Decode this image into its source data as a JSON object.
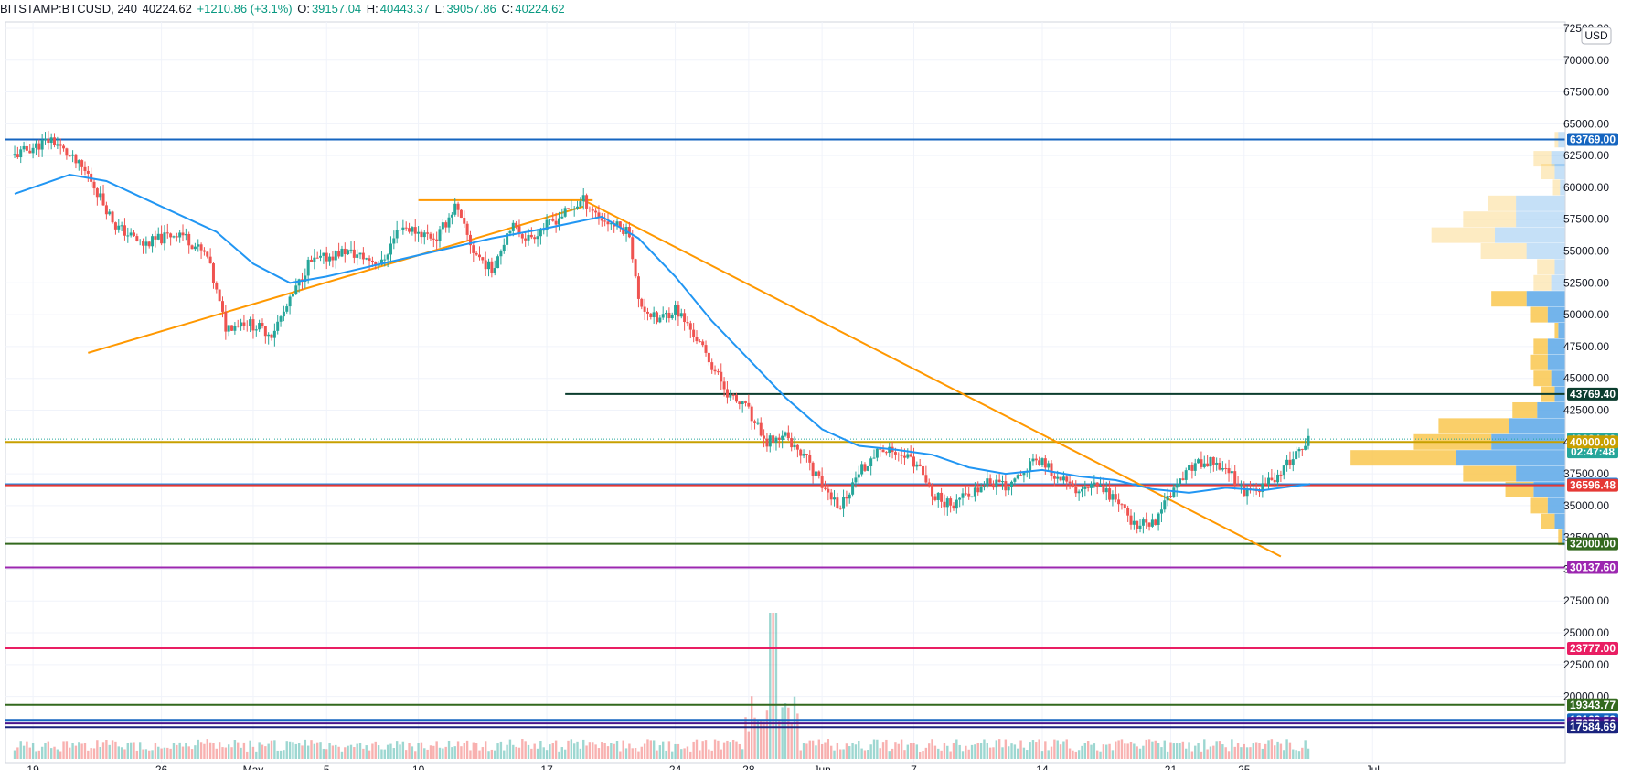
{
  "header": {
    "symbol": "BITSTAMP:BTCUSD, 240",
    "last": "40224.62",
    "change": "+1210.86 (+3.1%)",
    "o_label": "O:",
    "o": "39157.04",
    "h_label": "H:",
    "h": "40443.37",
    "l_label": "L:",
    "l": "39057.86",
    "c_label": "C:",
    "c": "40224.62"
  },
  "currency_badge": "USD",
  "colors": {
    "up": "#26a69a",
    "down": "#ef5350",
    "ma": "#2196f3",
    "trend": "#ff9800",
    "vp_buy": "#f9c74f",
    "vp_sell": "#5aa7e8"
  },
  "chart_data": {
    "type": "candlestick",
    "timeframe": "240",
    "x_ticks": [
      "19",
      "26",
      "May",
      "5",
      "10",
      "17",
      "24",
      "28",
      "Jun",
      "7",
      "14",
      "21",
      "25",
      "Jul"
    ],
    "y_ticks": [
      "72500.00",
      "70000.00",
      "67500.00",
      "65000.00",
      "62500.00",
      "60000.00",
      "57500.00",
      "55000.00",
      "52500.00",
      "50000.00",
      "47500.00",
      "45000.00",
      "42500.00",
      "40000.00",
      "37500.00",
      "35000.00",
      "32500.00",
      "30000.00",
      "27500.00",
      "25000.00",
      "22500.00",
      "20000.00"
    ],
    "ylim": [
      14800,
      73000
    ],
    "price_path": [
      {
        "d": 0,
        "p": 62500
      },
      {
        "d": 2,
        "p": 63800
      },
      {
        "d": 4,
        "p": 61000
      },
      {
        "d": 5.5,
        "p": 57000
      },
      {
        "d": 7,
        "p": 55500
      },
      {
        "d": 9,
        "p": 56500
      },
      {
        "d": 10.5,
        "p": 54500
      },
      {
        "d": 11.5,
        "p": 49000
      },
      {
        "d": 12.5,
        "p": 49500
      },
      {
        "d": 14,
        "p": 48500
      },
      {
        "d": 15,
        "p": 51000
      },
      {
        "d": 16,
        "p": 54000
      },
      {
        "d": 18,
        "p": 55000
      },
      {
        "d": 20,
        "p": 54000
      },
      {
        "d": 21,
        "p": 57000
      },
      {
        "d": 23,
        "p": 56000
      },
      {
        "d": 24,
        "p": 58500
      },
      {
        "d": 25,
        "p": 55000
      },
      {
        "d": 26,
        "p": 53500
      },
      {
        "d": 27,
        "p": 57000
      },
      {
        "d": 28,
        "p": 56000
      },
      {
        "d": 30,
        "p": 58000
      },
      {
        "d": 31,
        "p": 59000
      },
      {
        "d": 32,
        "p": 57500
      },
      {
        "d": 33.5,
        "p": 56500
      },
      {
        "d": 34,
        "p": 51000
      },
      {
        "d": 35,
        "p": 49500
      },
      {
        "d": 36,
        "p": 50500
      },
      {
        "d": 37,
        "p": 48500
      },
      {
        "d": 38,
        "p": 46000
      },
      {
        "d": 39,
        "p": 43500
      },
      {
        "d": 40,
        "p": 42500
      },
      {
        "d": 41,
        "p": 40000
      },
      {
        "d": 42,
        "p": 40500
      },
      {
        "d": 43,
        "p": 39000
      },
      {
        "d": 44,
        "p": 36500
      },
      {
        "d": 45,
        "p": 35000
      },
      {
        "d": 46,
        "p": 37500
      },
      {
        "d": 47,
        "p": 39500
      },
      {
        "d": 48,
        "p": 39000
      },
      {
        "d": 49,
        "p": 38500
      },
      {
        "d": 50,
        "p": 36000
      },
      {
        "d": 51,
        "p": 35000
      },
      {
        "d": 52,
        "p": 36000
      },
      {
        "d": 53,
        "p": 37000
      },
      {
        "d": 54,
        "p": 36500
      },
      {
        "d": 55,
        "p": 38000
      },
      {
        "d": 56,
        "p": 38500
      },
      {
        "d": 57,
        "p": 37000
      },
      {
        "d": 58,
        "p": 36000
      },
      {
        "d": 59,
        "p": 36500
      },
      {
        "d": 60,
        "p": 35500
      },
      {
        "d": 61,
        "p": 33500
      },
      {
        "d": 62,
        "p": 33500
      },
      {
        "d": 63,
        "p": 36000
      },
      {
        "d": 64,
        "p": 38000
      },
      {
        "d": 65,
        "p": 38500
      },
      {
        "d": 66,
        "p": 38000
      },
      {
        "d": 67,
        "p": 36000
      },
      {
        "d": 68,
        "p": 36500
      },
      {
        "d": 69,
        "p": 37500
      },
      {
        "d": 70,
        "p": 39500
      },
      {
        "d": 70.6,
        "p": 40224.62
      }
    ],
    "ma_path": [
      {
        "d": 0,
        "p": 59500
      },
      {
        "d": 3,
        "p": 61000
      },
      {
        "d": 5,
        "p": 60500
      },
      {
        "d": 8,
        "p": 58500
      },
      {
        "d": 11,
        "p": 56500
      },
      {
        "d": 13,
        "p": 54000
      },
      {
        "d": 15,
        "p": 52500
      },
      {
        "d": 17,
        "p": 53000
      },
      {
        "d": 20,
        "p": 54000
      },
      {
        "d": 23,
        "p": 55000
      },
      {
        "d": 26,
        "p": 56000
      },
      {
        "d": 29,
        "p": 56800
      },
      {
        "d": 32,
        "p": 57700
      },
      {
        "d": 34,
        "p": 56000
      },
      {
        "d": 36,
        "p": 53000
      },
      {
        "d": 38,
        "p": 49500
      },
      {
        "d": 40,
        "p": 46500
      },
      {
        "d": 42,
        "p": 43500
      },
      {
        "d": 44,
        "p": 41000
      },
      {
        "d": 46,
        "p": 39700
      },
      {
        "d": 48,
        "p": 39400
      },
      {
        "d": 50,
        "p": 39000
      },
      {
        "d": 52,
        "p": 38000
      },
      {
        "d": 54,
        "p": 37500
      },
      {
        "d": 56,
        "p": 37800
      },
      {
        "d": 58,
        "p": 37300
      },
      {
        "d": 60,
        "p": 37000
      },
      {
        "d": 62,
        "p": 36300
      },
      {
        "d": 64,
        "p": 36000
      },
      {
        "d": 66,
        "p": 36400
      },
      {
        "d": 68,
        "p": 36200
      },
      {
        "d": 70.6,
        "p": 36700
      }
    ],
    "volume_spike_day": 41.3,
    "volume_profile": [
      {
        "p": 63750,
        "buy": 0.01,
        "sell": 0.02
      },
      {
        "p": 62250,
        "buy": 0.05,
        "sell": 0.04
      },
      {
        "p": 61250,
        "buy": 0.04,
        "sell": 0.03
      },
      {
        "p": 60000,
        "buy": 0.02,
        "sell": 0.015
      },
      {
        "p": 58750,
        "buy": 0.08,
        "sell": 0.14
      },
      {
        "p": 57500,
        "buy": 0.15,
        "sell": 0.14
      },
      {
        "p": 56250,
        "buy": 0.18,
        "sell": 0.2
      },
      {
        "p": 55000,
        "buy": 0.13,
        "sell": 0.11
      },
      {
        "p": 53750,
        "buy": 0.05,
        "sell": 0.03
      },
      {
        "p": 52500,
        "buy": 0.05,
        "sell": 0.04
      },
      {
        "p": 51250,
        "buy": 0.1,
        "sell": 0.11
      },
      {
        "p": 50000,
        "buy": 0.05,
        "sell": 0.05
      },
      {
        "p": 48750,
        "buy": 0.01,
        "sell": 0.02
      },
      {
        "p": 47500,
        "buy": 0.04,
        "sell": 0.05
      },
      {
        "p": 46250,
        "buy": 0.05,
        "sell": 0.05
      },
      {
        "p": 45000,
        "buy": 0.05,
        "sell": 0.04
      },
      {
        "p": 43750,
        "buy": 0.04,
        "sell": 0.03
      },
      {
        "p": 42500,
        "buy": 0.07,
        "sell": 0.08
      },
      {
        "p": 41250,
        "buy": 0.2,
        "sell": 0.16
      },
      {
        "p": 40000,
        "buy": 0.22,
        "sell": 0.21
      },
      {
        "p": 38750,
        "buy": 0.3,
        "sell": 0.31
      },
      {
        "p": 37500,
        "buy": 0.15,
        "sell": 0.14
      },
      {
        "p": 36250,
        "buy": 0.08,
        "sell": 0.09
      },
      {
        "p": 35000,
        "buy": 0.05,
        "sell": 0.05
      },
      {
        "p": 33750,
        "buy": 0.04,
        "sell": 0.03
      },
      {
        "p": 32500,
        "buy": 0.01,
        "sell": 0.01
      }
    ],
    "trendlines": [
      {
        "from": {
          "d": 4,
          "p": 47000
        },
        "to": {
          "d": 31,
          "p": 58500
        }
      },
      {
        "from": {
          "d": 22,
          "p": 59000
        },
        "to": {
          "d": 31.5,
          "p": 59000
        }
      },
      {
        "from": {
          "d": 31,
          "p": 59000
        },
        "to": {
          "d": 69,
          "p": 31000
        }
      }
    ],
    "hlines": [
      {
        "p": 63769.0,
        "label": "63769.00",
        "color": "#1565c0"
      },
      {
        "p": 43769.4,
        "label": "43769.40",
        "color": "#0b3d2e",
        "from_d": 30
      },
      {
        "p": 40224.62,
        "label": "40224.62",
        "color": "#26a69a",
        "dotted": true,
        "countdown": "02:47:48"
      },
      {
        "p": 40000.0,
        "label": "40000.00",
        "color": "#c8a000"
      },
      {
        "p": 36678.73,
        "label": "36678.73",
        "color": "#1e88e5"
      },
      {
        "p": 36596.48,
        "label": "36596.48",
        "color": "#e53935"
      },
      {
        "p": 32000.0,
        "label": "32000.00",
        "color": "#33691e"
      },
      {
        "p": 30137.6,
        "label": "30137.60",
        "color": "#9c27b0"
      },
      {
        "p": 23777.0,
        "label": "23777.00",
        "color": "#e91e63"
      },
      {
        "p": 19343.77,
        "label": "19343.77",
        "color": "#33691e"
      },
      {
        "p": 18163.52,
        "label": "18163.52",
        "color": "#1565c0"
      },
      {
        "p": 17879.56,
        "label": "17879.56",
        "color": "#4a148c"
      },
      {
        "p": 17584.69,
        "label": "17584.69",
        "color": "#1a237e"
      }
    ]
  }
}
